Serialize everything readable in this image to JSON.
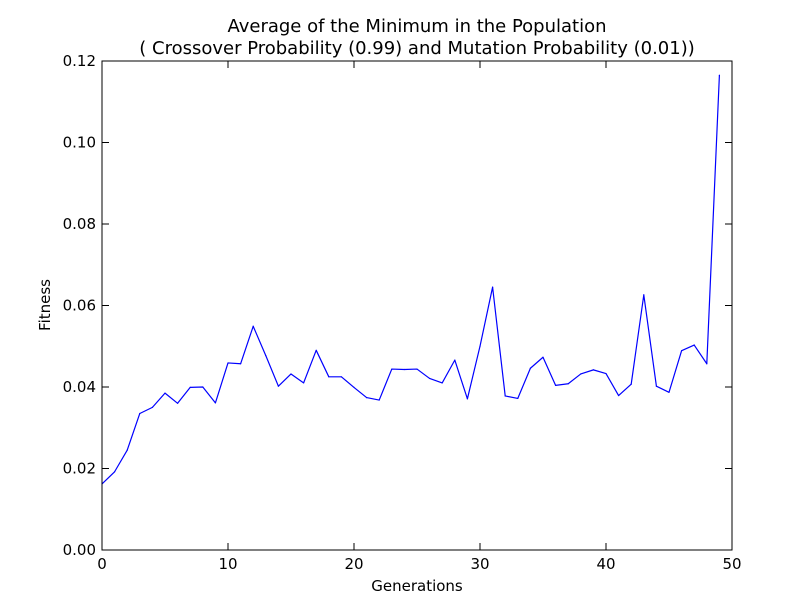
{
  "chart_data": {
    "type": "line",
    "title_line1": "Average of the Minimum in the Population",
    "title_line2": "( Crossover Probability (0.99) and Mutation Probability (0.01))",
    "xlabel": "Generations",
    "ylabel": "Fitness",
    "xlim": [
      0,
      50
    ],
    "ylim": [
      0,
      0.12
    ],
    "x_ticks": [
      0,
      10,
      20,
      30,
      40,
      50
    ],
    "x_tick_labels": [
      "0",
      "10",
      "20",
      "30",
      "40",
      "50"
    ],
    "y_ticks": [
      0,
      0.02,
      0.04,
      0.06,
      0.08,
      0.1,
      0.12
    ],
    "y_tick_labels": [
      "0.00",
      "0.02",
      "0.04",
      "0.06",
      "0.08",
      "0.10",
      "0.12"
    ],
    "grid": false,
    "series": [
      {
        "name": "Average of the Minimum",
        "color": "#0000ff",
        "x": [
          0,
          1,
          2,
          3,
          4,
          5,
          6,
          7,
          8,
          9,
          10,
          11,
          12,
          13,
          14,
          15,
          16,
          17,
          18,
          19,
          20,
          21,
          22,
          23,
          24,
          25,
          26,
          27,
          28,
          29,
          30,
          31,
          32,
          33,
          34,
          35,
          36,
          37,
          38,
          39,
          40,
          41,
          42,
          43,
          44,
          45,
          46,
          47,
          48,
          49
        ],
        "values": [
          0.0162,
          0.0192,
          0.0245,
          0.0335,
          0.035,
          0.0385,
          0.036,
          0.0399,
          0.04,
          0.0361,
          0.0459,
          0.0457,
          0.0549,
          0.0477,
          0.0402,
          0.0432,
          0.041,
          0.049,
          0.0425,
          0.0425,
          0.0399,
          0.0374,
          0.0368,
          0.0444,
          0.0443,
          0.0444,
          0.0421,
          0.041,
          0.0466,
          0.0371,
          0.05,
          0.0645,
          0.0378,
          0.0372,
          0.0446,
          0.0473,
          0.0404,
          0.0408,
          0.0432,
          0.0442,
          0.0433,
          0.0379,
          0.0407,
          0.0626,
          0.0402,
          0.0387,
          0.0489,
          0.0503,
          0.0457,
          0.1165
        ]
      }
    ]
  }
}
